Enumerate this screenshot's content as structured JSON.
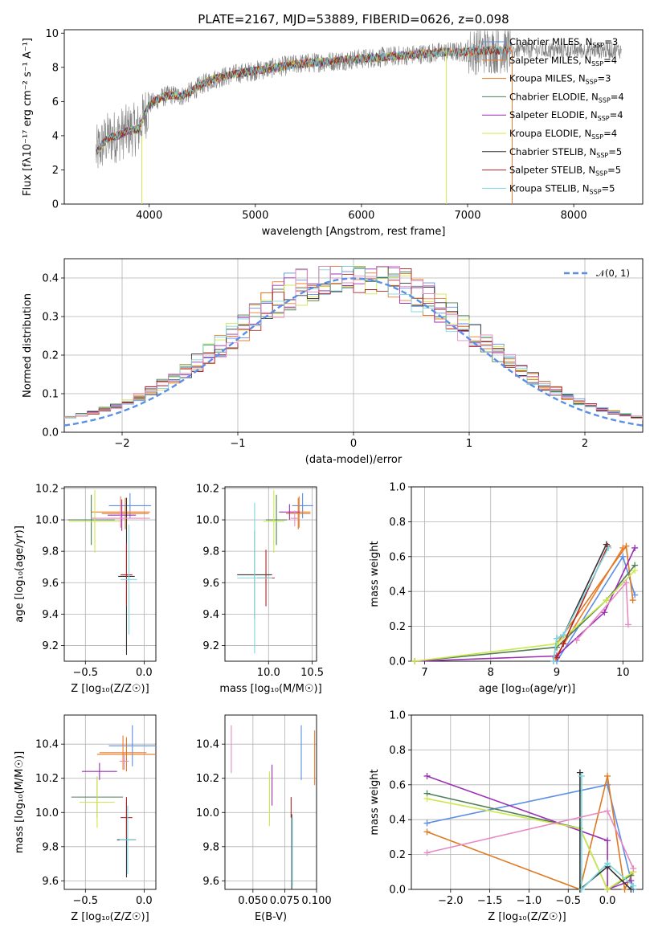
{
  "figure": {
    "title": "PLATE=2167, MJD=53889, FIBERID=0626, z=0.098"
  },
  "colors": {
    "Chabrier MILES": "#5b8ee6",
    "Salpeter MILES": "#f07c2c",
    "Kroupa MILES": "#e07820",
    "Chabrier ELODIE": "#4f7f57",
    "Salpeter ELODIE": "#9b2fb3",
    "Kroupa ELODIE": "#cde84a",
    "Chabrier STELIB": "#333333",
    "Salpeter STELIB": "#b22222",
    "Kroupa STELIB": "#7dd8e0",
    "pink": "#e78ac3",
    "normal_curve": "#5b8ee6",
    "grid": "#b0b0b0",
    "observed_spectrum": "#808080"
  },
  "chart_data": [
    {
      "id": "spectrum",
      "type": "line",
      "title": "PLATE=2167, MJD=53889, FIBERID=0626, z=0.098",
      "xlabel": "wavelength [Angstrom, rest frame]",
      "ylabel": "Flux [fλ10⁻¹⁷ erg cm⁻² s⁻¹ A⁻¹]",
      "xlim": [
        3200,
        8650
      ],
      "ylim": [
        0,
        10.2
      ],
      "xticks": [
        4000,
        5000,
        6000,
        7000,
        8000
      ],
      "yticks": [
        0,
        2,
        4,
        6,
        8,
        10
      ],
      "grid": false,
      "legend_position": "top-right",
      "legend": [
        "Chabrier MILES, N_SSP=3",
        "Salpeter MILES, N_SSP=4",
        "Kroupa MILES, N_SSP=3",
        "Chabrier ELODIE, N_SSP=4",
        "Salpeter ELODIE, N_SSP=4",
        "Kroupa ELODIE, N_SSP=4",
        "Chabrier STELIB, N_SSP=5",
        "Salpeter STELIB, N_SSP=5",
        "Kroupa STELIB, N_SSP=5"
      ],
      "continuum": {
        "x": [
          3500,
          3600,
          3700,
          3800,
          3900,
          4000,
          4100,
          4200,
          4300,
          4400,
          4500,
          4600,
          4800,
          5000,
          5200,
          5400,
          5600,
          5800,
          6000,
          6200,
          6400,
          6600,
          6800,
          7000,
          7200,
          7400
        ],
        "y": [
          3.0,
          3.8,
          4.0,
          4.3,
          4.4,
          5.8,
          6.2,
          6.4,
          6.3,
          6.6,
          7.0,
          7.3,
          7.6,
          7.8,
          8.0,
          8.2,
          8.3,
          8.4,
          8.5,
          8.6,
          8.7,
          8.8,
          8.9,
          8.9,
          9.0,
          9.0
        ]
      }
    },
    {
      "id": "residuals",
      "type": "line",
      "xlabel": "(data-model)/error",
      "ylabel": "Normed distribution",
      "xlim": [
        -2.5,
        2.5
      ],
      "ylim": [
        0,
        0.45
      ],
      "xticks": [
        -2,
        -1,
        0,
        1,
        2
      ],
      "yticks": [
        0.0,
        0.1,
        0.2,
        0.3,
        0.4
      ],
      "grid": true,
      "legend": [
        "𝒩(0, 1)"
      ],
      "legend_position": "top-right"
    },
    {
      "id": "age_vs_Z",
      "type": "scatter",
      "xlabel": "Z [log₁₀(Z/Z☉)]",
      "ylabel": "age  [log₁₀(age/yr)]",
      "xlim": [
        -0.68,
        0.1
      ],
      "ylim": [
        9.1,
        10.21
      ],
      "xticks": [
        -0.5,
        0.0
      ],
      "yticks": [
        9.2,
        9.4,
        9.6,
        9.8,
        10.0,
        10.2
      ],
      "grid": true,
      "points": [
        {
          "series": "Chabrier MILES",
          "x": -0.12,
          "y": 10.09,
          "xerr": 0.18,
          "yerr": 0.08
        },
        {
          "series": "Salpeter MILES",
          "x": -0.2,
          "y": 10.05,
          "xerr": 0.25,
          "yerr": 0.1
        },
        {
          "series": "Kroupa MILES",
          "x": -0.16,
          "y": 10.04,
          "xerr": 0.2,
          "yerr": 0.1
        },
        {
          "series": "Chabrier ELODIE",
          "x": -0.45,
          "y": 10.0,
          "xerr": 0.2,
          "yerr": 0.16
        },
        {
          "series": "Salpeter ELODIE",
          "x": -0.19,
          "y": 10.03,
          "xerr": 0.12,
          "yerr": 0.1
        },
        {
          "series": "Kroupa ELODIE",
          "x": -0.42,
          "y": 9.99,
          "xerr": 0.22,
          "yerr": 0.2
        },
        {
          "series": "Chabrier STELIB",
          "x": -0.15,
          "y": 9.64,
          "xerr": 0.07,
          "yerr": 0.5
        },
        {
          "series": "Salpeter STELIB",
          "x": -0.15,
          "y": 9.65,
          "xerr": 0.05,
          "yerr": 0.2
        },
        {
          "series": "Kroupa STELIB",
          "x": -0.13,
          "y": 9.62,
          "xerr": 0.07,
          "yerr": 0.35
        },
        {
          "series": "pink",
          "x": -0.2,
          "y": 10.01,
          "xerr": 0.25,
          "yerr": 0.05
        }
      ]
    },
    {
      "id": "age_vs_mass",
      "type": "scatter",
      "xlabel": "mass [log₁₀(M/M☉)]",
      "xlim": [
        9.5,
        10.55
      ],
      "ylim": [
        9.1,
        10.21
      ],
      "xticks": [
        10.0,
        10.5
      ],
      "yticks": [
        9.2,
        9.4,
        9.6,
        9.8,
        10.0,
        10.2
      ],
      "grid": true,
      "points": [
        {
          "series": "Chabrier MILES",
          "x": 10.39,
          "y": 10.09,
          "xerr": 0.12,
          "yerr": 0.08
        },
        {
          "series": "Salpeter MILES",
          "x": 10.35,
          "y": 10.05,
          "xerr": 0.13,
          "yerr": 0.1
        },
        {
          "series": "Kroupa MILES",
          "x": 10.34,
          "y": 10.04,
          "xerr": 0.14,
          "yerr": 0.1
        },
        {
          "series": "Chabrier ELODIE",
          "x": 10.09,
          "y": 10.0,
          "xerr": 0.12,
          "yerr": 0.16
        },
        {
          "series": "Salpeter ELODIE",
          "x": 10.24,
          "y": 10.05,
          "xerr": 0.12,
          "yerr": 0.05
        },
        {
          "series": "Kroupa ELODIE",
          "x": 10.06,
          "y": 9.99,
          "xerr": 0.12,
          "yerr": 0.2
        },
        {
          "series": "Chabrier STELIB",
          "x": 9.84,
          "y": 9.65,
          "xerr": 0.2,
          "yerr": 0.28
        },
        {
          "series": "Salpeter STELIB",
          "x": 9.97,
          "y": 9.63,
          "xerr": 0.1,
          "yerr": 0.18
        },
        {
          "series": "Kroupa STELIB",
          "x": 9.84,
          "y": 9.63,
          "xerr": 0.2,
          "yerr": 0.48
        },
        {
          "series": "pink",
          "x": 10.3,
          "y": 10.01,
          "xerr": 0.05,
          "yerr": 0.05
        }
      ]
    },
    {
      "id": "weight_vs_age",
      "type": "line",
      "xlabel": "age  [log₁₀(age/yr)]",
      "ylabel": "mass weight",
      "xlim": [
        6.8,
        10.3
      ],
      "ylim": [
        0,
        1.0
      ],
      "xticks": [
        7,
        8,
        9,
        10
      ],
      "yticks": [
        0.0,
        0.2,
        0.4,
        0.6,
        0.8,
        1.0
      ],
      "grid": true,
      "series": [
        {
          "series": "Chabrier MILES",
          "x": [
            9.0,
            10.0,
            10.18
          ],
          "y": [
            0.0,
            0.6,
            0.38
          ]
        },
        {
          "series": "Salpeter MILES",
          "x": [
            8.98,
            10.0
          ],
          "y": [
            0.02,
            0.65
          ]
        },
        {
          "series": "Kroupa MILES",
          "x": [
            9.0,
            10.05,
            10.15
          ],
          "y": [
            0.1,
            0.66,
            0.35
          ]
        },
        {
          "series": "Chabrier ELODIE",
          "x": [
            6.85,
            9.0,
            9.75,
            10.18
          ],
          "y": [
            0.0,
            0.08,
            0.35,
            0.55
          ]
        },
        {
          "series": "Salpeter ELODIE",
          "x": [
            6.85,
            9.0,
            9.72,
            10.18
          ],
          "y": [
            0.0,
            0.03,
            0.28,
            0.65
          ]
        },
        {
          "series": "Kroupa ELODIE",
          "x": [
            6.85,
            9.0,
            9.75,
            10.18
          ],
          "y": [
            0.0,
            0.1,
            0.35,
            0.52
          ]
        },
        {
          "series": "Chabrier STELIB",
          "x": [
            8.95,
            9.0,
            9.1,
            9.75
          ],
          "y": [
            0.0,
            0.13,
            0.15,
            0.67
          ]
        },
        {
          "series": "Salpeter STELIB",
          "x": [
            9.0,
            9.1,
            9.77
          ],
          "y": [
            0.02,
            0.1,
            0.66
          ]
        },
        {
          "series": "Kroupa STELIB",
          "x": [
            8.95,
            9.0,
            9.1,
            9.78
          ],
          "y": [
            0.0,
            0.13,
            0.15,
            0.65
          ]
        },
        {
          "series": "pink",
          "x": [
            9.3,
            10.05,
            10.08
          ],
          "y": [
            0.12,
            0.45,
            0.21
          ]
        }
      ]
    },
    {
      "id": "mass_vs_Z",
      "type": "scatter",
      "xlabel": "Z [log₁₀(Z/Z☉)]",
      "ylabel": "mass [log₁₀(M/M☉)]",
      "xlim": [
        -0.68,
        0.1
      ],
      "ylim": [
        9.55,
        10.57
      ],
      "xticks": [
        -0.5,
        0.0
      ],
      "yticks": [
        9.6,
        9.8,
        10.0,
        10.2,
        10.4
      ],
      "grid": true,
      "points": [
        {
          "series": "Chabrier MILES",
          "x": -0.1,
          "y": 10.39,
          "xerr": 0.2,
          "yerr": 0.12
        },
        {
          "series": "Salpeter MILES",
          "x": -0.18,
          "y": 10.35,
          "xerr": 0.2,
          "yerr": 0.1
        },
        {
          "series": "Kroupa MILES",
          "x": -0.15,
          "y": 10.34,
          "xerr": 0.25,
          "yerr": 0.1
        },
        {
          "series": "Chabrier ELODIE",
          "x": -0.4,
          "y": 10.09,
          "xerr": 0.22,
          "yerr": 0.12
        },
        {
          "series": "Salpeter ELODIE",
          "x": -0.38,
          "y": 10.24,
          "xerr": 0.15,
          "yerr": 0.05
        },
        {
          "series": "Kroupa ELODIE",
          "x": -0.4,
          "y": 10.06,
          "xerr": 0.15,
          "yerr": 0.15
        },
        {
          "series": "Chabrier STELIB",
          "x": -0.15,
          "y": 9.84,
          "xerr": 0.08,
          "yerr": 0.22
        },
        {
          "series": "Salpeter STELIB",
          "x": -0.15,
          "y": 9.97,
          "xerr": 0.05,
          "yerr": 0.12
        },
        {
          "series": "Kroupa STELIB",
          "x": -0.14,
          "y": 9.84,
          "xerr": 0.07,
          "yerr": 0.2
        },
        {
          "series": "pink",
          "x": -0.17,
          "y": 10.3,
          "xerr": 0.04,
          "yerr": 0.05
        }
      ]
    },
    {
      "id": "mass_vs_EBV",
      "type": "scatter",
      "xlabel": "E(B-V)",
      "xlim": [
        0.028,
        0.1
      ],
      "ylim": [
        9.55,
        10.57
      ],
      "xticks": [
        0.05,
        0.075,
        0.1
      ],
      "xtick_labels": [
        "0.050",
        "0.075",
        "0.100"
      ],
      "yticks": [
        9.6,
        9.8,
        10.0,
        10.2,
        10.4
      ],
      "grid": true,
      "points": [
        {
          "series": "pink",
          "x": 0.033,
          "y": 10.37,
          "yerr": 0.14
        },
        {
          "series": "Kroupa ELODIE",
          "x": 0.063,
          "y": 10.08,
          "yerr": 0.16
        },
        {
          "series": "Salpeter ELODIE",
          "x": 0.065,
          "y": 10.16,
          "yerr": 0.12
        },
        {
          "series": "Salpeter STELIB",
          "x": 0.08,
          "y": 10.03,
          "yerr": 0.06
        },
        {
          "series": "Chabrier STELIB",
          "x": 0.0805,
          "y": 9.77,
          "yerr": 0.22
        },
        {
          "series": "Kroupa STELIB",
          "x": 0.081,
          "y": 9.77,
          "yerr": 0.2
        },
        {
          "series": "Chabrier MILES",
          "x": 0.088,
          "y": 10.35,
          "yerr": 0.16
        },
        {
          "series": "Salpeter MILES",
          "x": 0.0985,
          "y": 10.32,
          "yerr": 0.16
        }
      ]
    },
    {
      "id": "weight_vs_Z",
      "type": "line",
      "xlabel": "Z [log₁₀(Z/Z☉)]",
      "ylabel": "mass weight",
      "xlim": [
        -2.5,
        0.45
      ],
      "ylim": [
        0,
        1.0
      ],
      "xticks": [
        -2.0,
        -1.5,
        -1.0,
        -0.5,
        0.0
      ],
      "yticks": [
        0.0,
        0.2,
        0.4,
        0.6,
        0.8,
        1.0
      ],
      "grid": true,
      "series": [
        {
          "series": "Chabrier MILES",
          "x": [
            -2.3,
            0.0,
            0.33
          ],
          "y": [
            0.38,
            0.6,
            0.0
          ]
        },
        {
          "series": "Kroupa MILES",
          "x": [
            -2.3,
            -0.35,
            0.0,
            0.22,
            0.33
          ],
          "y": [
            0.33,
            0.0,
            0.65,
            0.0,
            0.1
          ]
        },
        {
          "series": "Chabrier ELODIE",
          "x": [
            -2.3,
            -0.35,
            0.0,
            0.3
          ],
          "y": [
            0.55,
            0.35,
            0.0,
            0.08
          ]
        },
        {
          "series": "Salpeter ELODIE",
          "x": [
            -2.3,
            0.0,
            0.0,
            0.3
          ],
          "y": [
            0.65,
            0.28,
            0.0,
            0.05
          ]
        },
        {
          "series": "Kroupa ELODIE",
          "x": [
            -2.3,
            -0.35,
            0.0,
            0.33
          ],
          "y": [
            0.52,
            0.35,
            0.0,
            0.1
          ]
        },
        {
          "series": "Chabrier STELIB",
          "x": [
            -0.35,
            -0.35,
            0.0,
            0.3
          ],
          "y": [
            0.67,
            0.0,
            0.13,
            0.0
          ]
        },
        {
          "series": "Kroupa STELIB",
          "x": [
            -0.33,
            -0.33,
            0.0,
            0.33
          ],
          "y": [
            0.65,
            0.0,
            0.15,
            0.02
          ]
        },
        {
          "series": "pink",
          "x": [
            -2.3,
            0.0,
            0.33
          ],
          "y": [
            0.21,
            0.45,
            0.12
          ]
        }
      ]
    }
  ]
}
